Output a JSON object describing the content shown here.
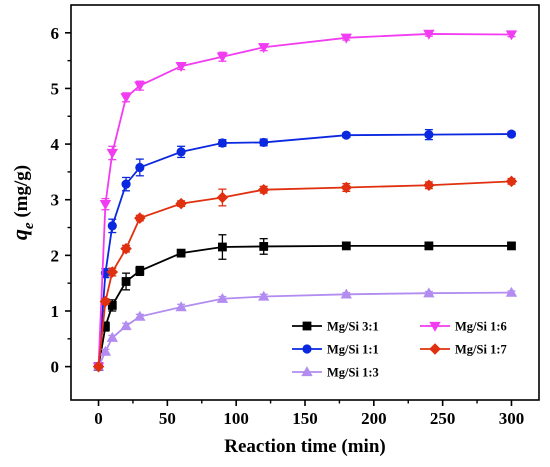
{
  "chart_data": {
    "type": "line",
    "xlabel": "Reaction time (min)",
    "ylabel_symbol": "q",
    "ylabel_subscript": "e",
    "ylabel_unit": " (mg/g)",
    "xlim": [
      -20,
      320
    ],
    "ylim": [
      -0.6,
      6.5
    ],
    "xticks": [
      0,
      50,
      100,
      150,
      200,
      250,
      300
    ],
    "yticks": [
      0,
      1,
      2,
      3,
      4,
      5,
      6
    ],
    "x": [
      0,
      5,
      10,
      20,
      30,
      60,
      90,
      120,
      180,
      240,
      300
    ],
    "grid": false,
    "legend_position": "bottom-right",
    "series": [
      {
        "name": "Mg/Si 3:1",
        "color": "#000000",
        "marker": "square",
        "values": [
          0,
          0.72,
          1.1,
          1.53,
          1.72,
          2.04,
          2.15,
          2.16,
          2.17,
          2.17,
          2.17
        ],
        "errors": [
          0,
          0.08,
          0.1,
          0.15,
          0.08,
          0.04,
          0.22,
          0.14,
          0.04,
          0.03,
          0.03
        ]
      },
      {
        "name": "Mg/Si 1:1",
        "color": "#0a28e0",
        "marker": "circle",
        "values": [
          0,
          1.68,
          2.53,
          3.28,
          3.58,
          3.86,
          4.02,
          4.03,
          4.16,
          4.17,
          4.18
        ],
        "errors": [
          0,
          0.08,
          0.12,
          0.12,
          0.15,
          0.1,
          0.06,
          0.06,
          0.04,
          0.09,
          0.04
        ]
      },
      {
        "name": "Mg/Si 1:3",
        "color": "#b28cf0",
        "marker": "triangle-up",
        "values": [
          0,
          0.27,
          0.52,
          0.73,
          0.9,
          1.07,
          1.22,
          1.26,
          1.3,
          1.32,
          1.33
        ],
        "errors": [
          0,
          0.04,
          0.04,
          0.05,
          0.04,
          0.05,
          0.04,
          0.04,
          0.03,
          0.03,
          0.03
        ]
      },
      {
        "name": "Mg/Si 1:6",
        "color": "#f23cf2",
        "marker": "triangle-down",
        "values": [
          0,
          2.92,
          3.84,
          4.84,
          5.05,
          5.4,
          5.57,
          5.74,
          5.91,
          5.98,
          5.97
        ],
        "errors": [
          0,
          0.1,
          0.12,
          0.08,
          0.08,
          0.06,
          0.08,
          0.06,
          0.04,
          0.04,
          0.04
        ]
      },
      {
        "name": "Mg/Si 1:7",
        "color": "#e03010",
        "marker": "diamond",
        "values": [
          0,
          1.17,
          1.7,
          2.12,
          2.67,
          2.93,
          3.04,
          3.18,
          3.22,
          3.26,
          3.33
        ],
        "errors": [
          0,
          0.05,
          0.07,
          0.06,
          0.05,
          0.05,
          0.15,
          0.06,
          0.07,
          0.06,
          0.05
        ]
      }
    ],
    "legend_order": [
      "Mg/Si 3:1",
      "Mg/Si 1:6",
      "Mg/Si 1:1",
      "Mg/Si 1:7",
      "Mg/Si 1:3"
    ]
  }
}
